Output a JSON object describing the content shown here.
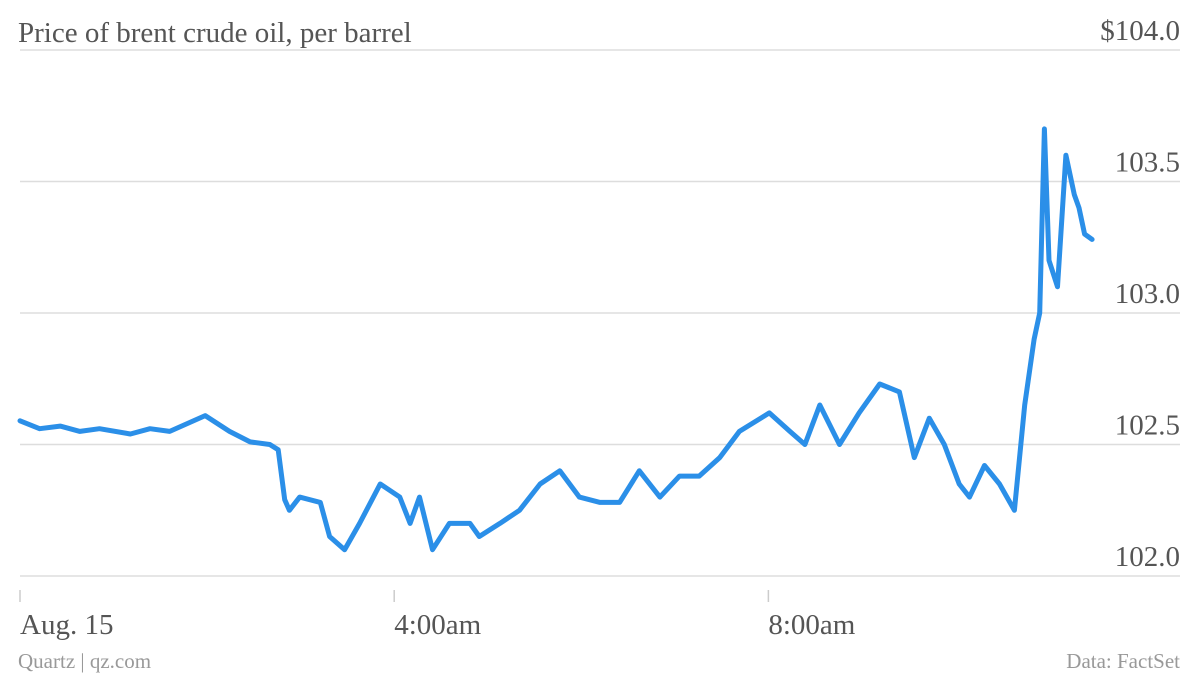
{
  "chart_data": {
    "type": "line",
    "title": "Price of brent crude oil, per barrel",
    "credit": "Quartz | qz.com",
    "source": "Data: FactSet",
    "x": [
      0,
      0.21,
      0.43,
      0.64,
      0.85,
      1.18,
      1.39,
      1.6,
      1.98,
      2.24,
      2.46,
      2.67,
      2.76,
      2.83,
      2.88,
      2.99,
      3.21,
      3.31,
      3.47,
      3.63,
      3.85,
      4.06,
      4.17,
      4.27,
      4.41,
      4.59,
      4.81,
      4.91,
      5.13,
      5.34,
      5.56,
      5.77,
      5.98,
      6.2,
      6.41,
      6.62,
      6.84,
      7.05,
      7.26,
      7.48,
      7.69,
      8.01,
      8.23,
      8.39,
      8.55,
      8.76,
      8.97,
      9.19,
      9.4,
      9.56,
      9.72,
      9.88,
      10.04,
      10.15,
      10.31,
      10.47,
      10.63,
      10.74,
      10.84,
      10.9,
      10.95,
      11.0,
      11.09,
      11.18,
      11.27,
      11.32,
      11.38,
      11.46
    ],
    "series": [
      {
        "name": "Brent crude",
        "color": "#2b8fe8",
        "values": [
          102.59,
          102.56,
          102.57,
          102.55,
          102.56,
          102.54,
          102.56,
          102.55,
          102.61,
          102.55,
          102.51,
          102.5,
          102.48,
          102.29,
          102.25,
          102.3,
          102.28,
          102.15,
          102.1,
          102.2,
          102.35,
          102.3,
          102.2,
          102.3,
          102.1,
          102.2,
          102.2,
          102.15,
          102.2,
          102.25,
          102.35,
          102.4,
          102.3,
          102.28,
          102.28,
          102.4,
          102.3,
          102.38,
          102.38,
          102.45,
          102.55,
          102.62,
          102.55,
          102.5,
          102.65,
          102.5,
          102.62,
          102.73,
          102.7,
          102.45,
          102.6,
          102.5,
          102.35,
          102.3,
          102.42,
          102.35,
          102.25,
          102.65,
          102.9,
          103.0,
          103.7,
          103.2,
          103.1,
          103.6,
          103.45,
          103.4,
          103.3,
          103.28
        ]
      }
    ],
    "xlim": [
      0,
      12.4
    ],
    "xticks": [
      {
        "value": 0,
        "label": "Aug. 15"
      },
      {
        "value": 4,
        "label": "4:00am"
      },
      {
        "value": 8,
        "label": "8:00am"
      }
    ],
    "ylim": [
      102,
      104
    ],
    "yticks": [
      {
        "value": 102,
        "label": "102.0"
      },
      102.5,
      {
        "value": 103,
        "label": "103.0"
      },
      103.5,
      {
        "value": 104,
        "label": "$104.0"
      }
    ],
    "grid": true
  }
}
